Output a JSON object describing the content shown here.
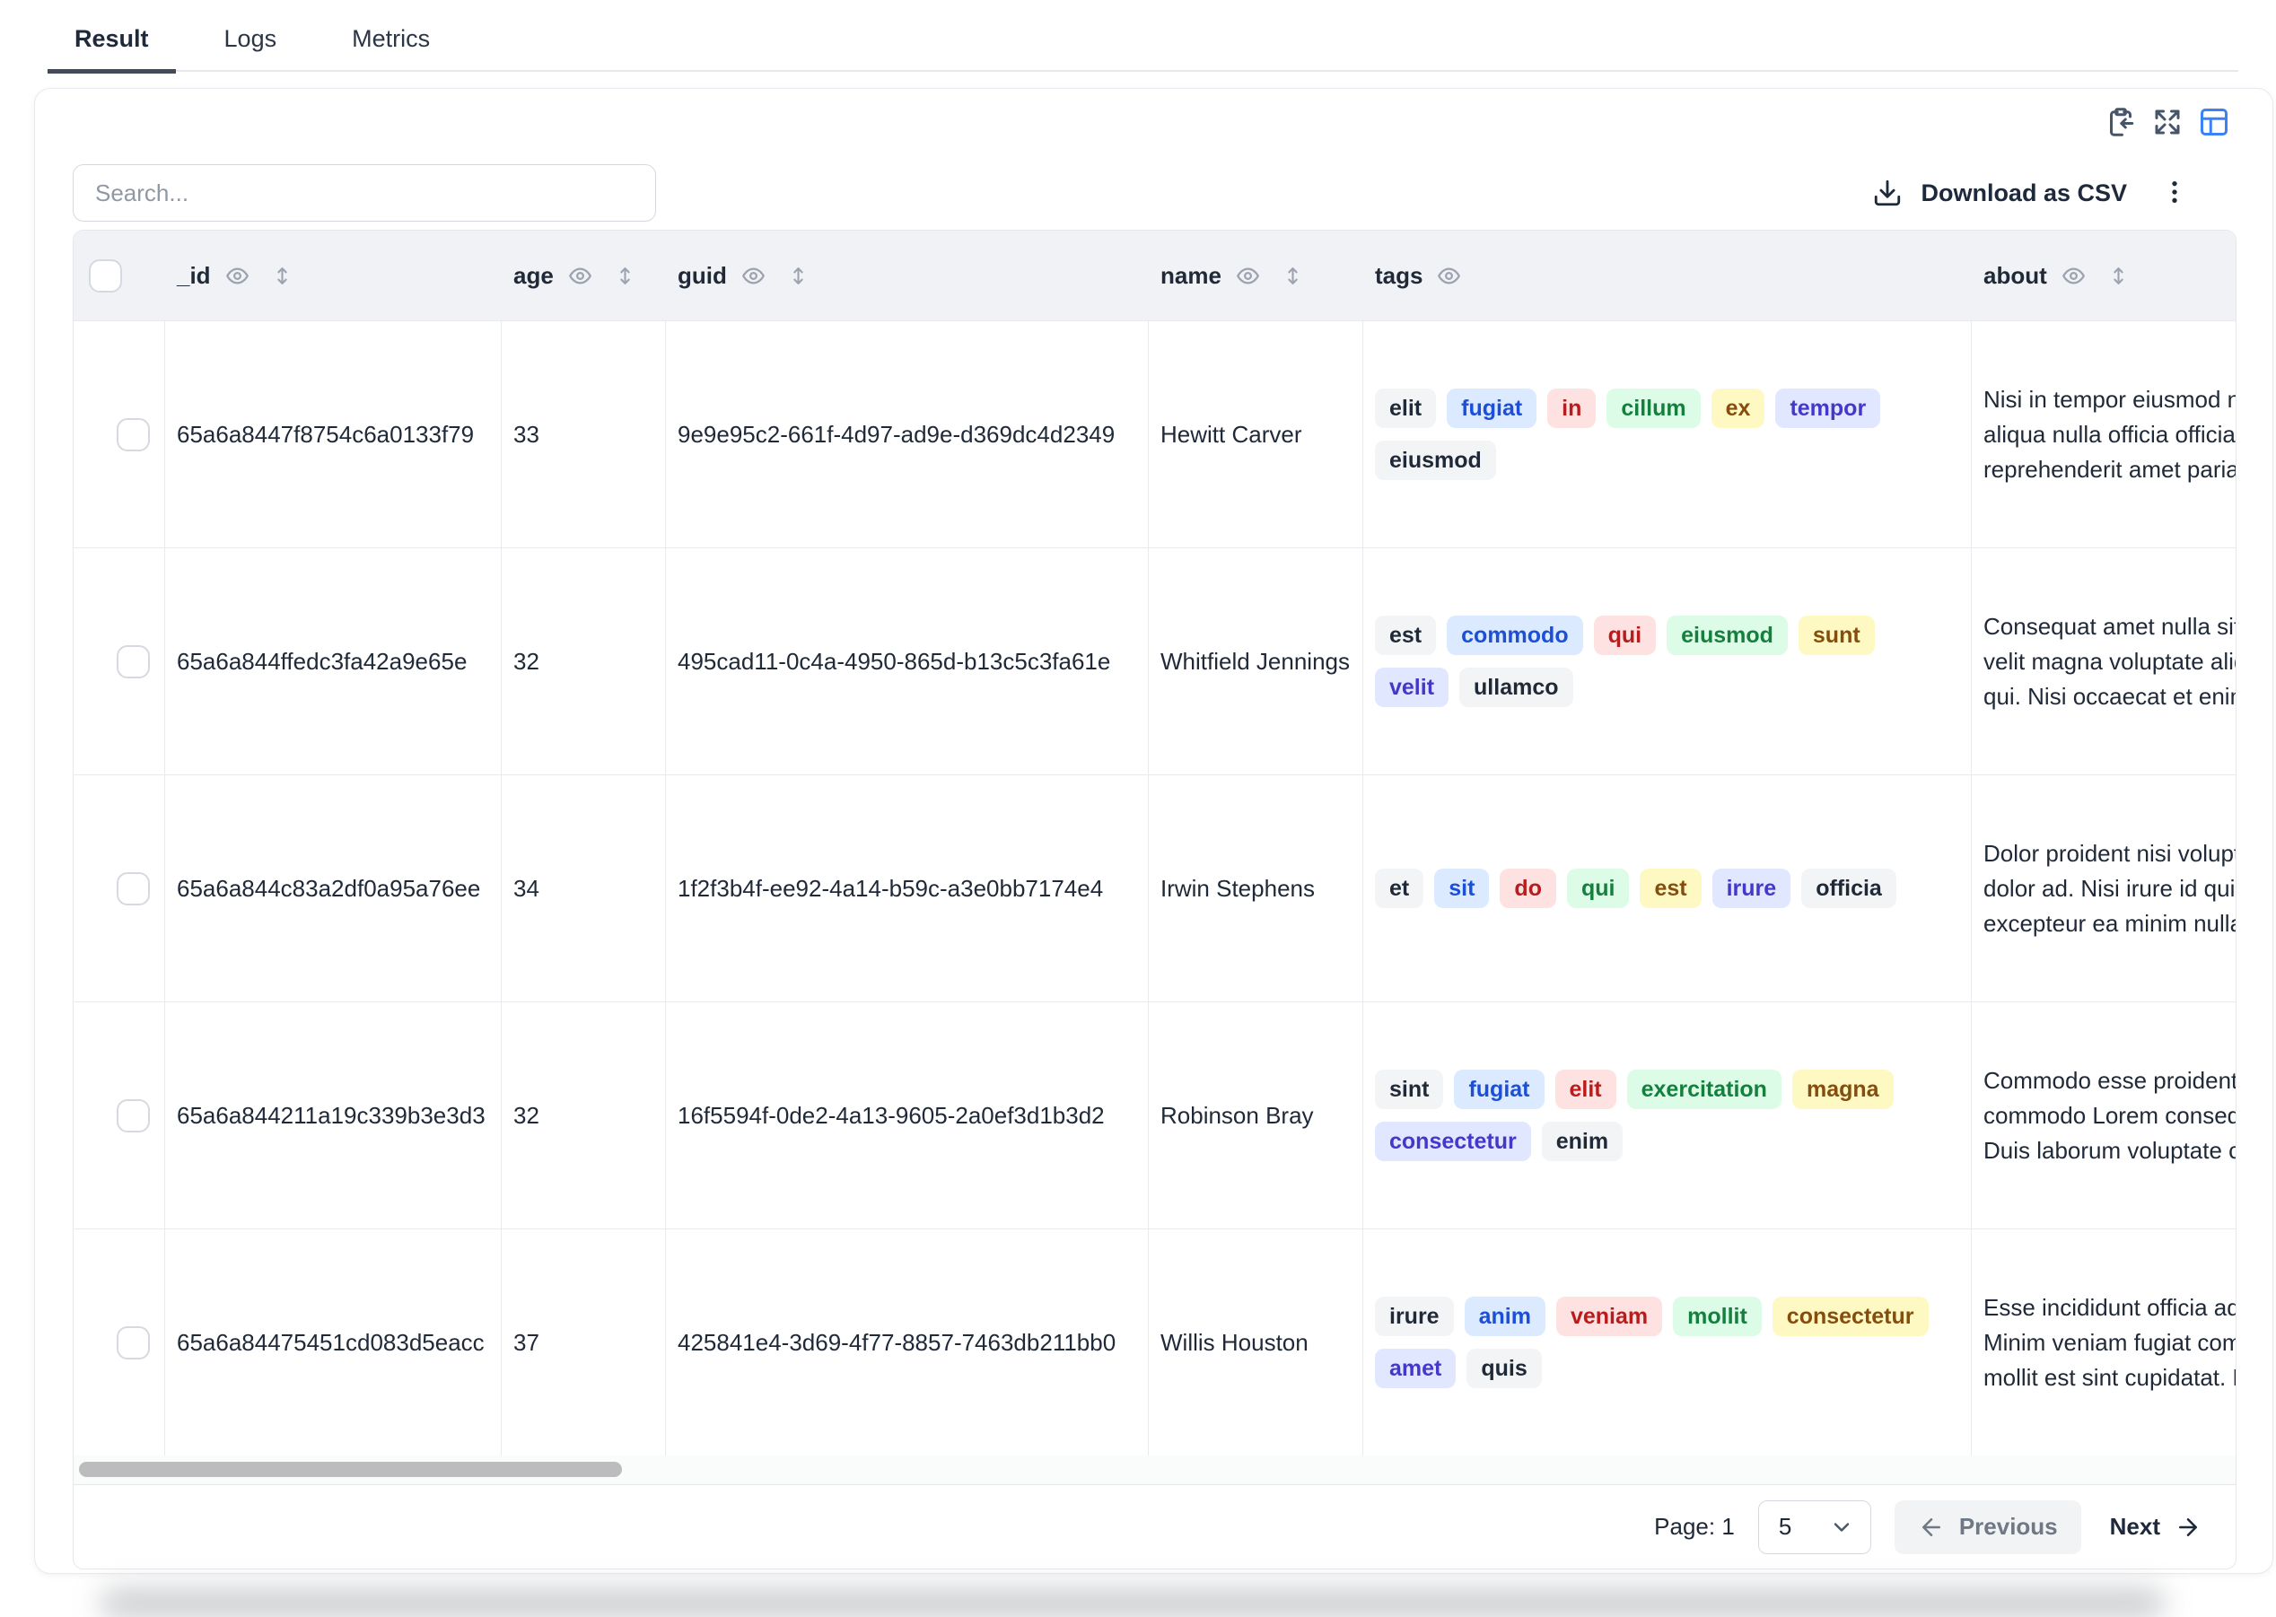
{
  "tabs": [
    {
      "label": "Result",
      "active": true
    },
    {
      "label": "Logs",
      "active": false
    },
    {
      "label": "Metrics",
      "active": false
    }
  ],
  "toolbar": {
    "search_placeholder": "Search...",
    "download_label": "Download as CSV",
    "icons": [
      "clipboard-import-icon",
      "expand-icon",
      "table-layout-icon",
      "download-icon",
      "kebab-menu-icon"
    ]
  },
  "table": {
    "columns": [
      {
        "key": "id",
        "label": "_id",
        "eye": true,
        "sort": true
      },
      {
        "key": "age",
        "label": "age",
        "eye": true,
        "sort": true
      },
      {
        "key": "guid",
        "label": "guid",
        "eye": true,
        "sort": true
      },
      {
        "key": "name",
        "label": "name",
        "eye": true,
        "sort": true
      },
      {
        "key": "tags",
        "label": "tags",
        "eye": true,
        "sort": false
      },
      {
        "key": "about",
        "label": "about",
        "eye": true,
        "sort": true
      }
    ],
    "rows": [
      {
        "id": "65a6a8447f8754c6a0133f79",
        "age": "33",
        "guid": "9e9e95c2-661f-4d97-ad9e-d369dc4d2349",
        "name": "Hewitt Carver",
        "tags": [
          {
            "text": "elit",
            "color": "gray"
          },
          {
            "text": "fugiat",
            "color": "blue"
          },
          {
            "text": "in",
            "color": "red"
          },
          {
            "text": "cillum",
            "color": "green"
          },
          {
            "text": "ex",
            "color": "yellow"
          },
          {
            "text": "tempor",
            "color": "indigo"
          },
          {
            "text": "eiusmod",
            "color": "gray"
          }
        ],
        "about_lines": [
          "Nisi in tempor eiusmod nulla",
          "aliqua nulla officia officia. Ad",
          "reprehenderit amet pariatur"
        ]
      },
      {
        "id": "65a6a844ffedc3fa42a9e65e",
        "age": "32",
        "guid": "495cad11-0c4a-4950-865d-b13c5c3fa61e",
        "name": "Whitfield Jennings",
        "tags": [
          {
            "text": "est",
            "color": "gray"
          },
          {
            "text": "commodo",
            "color": "blue"
          },
          {
            "text": "qui",
            "color": "red"
          },
          {
            "text": "eiusmod",
            "color": "green"
          },
          {
            "text": "sunt",
            "color": "yellow"
          },
          {
            "text": "velit",
            "color": "indigo"
          },
          {
            "text": "ullamco",
            "color": "gray"
          }
        ],
        "about_lines": [
          "Consequat amet nulla sit au",
          "velit magna voluptate aliqua",
          "qui. Nisi occaecat et enim a"
        ]
      },
      {
        "id": "65a6a844c83a2df0a95a76ee",
        "age": "34",
        "guid": "1f2f3b4f-ee92-4a14-b59c-a3e0bb7174e4",
        "name": "Irwin Stephens",
        "tags": [
          {
            "text": "et",
            "color": "gray"
          },
          {
            "text": "sit",
            "color": "blue"
          },
          {
            "text": "do",
            "color": "red"
          },
          {
            "text": "qui",
            "color": "green"
          },
          {
            "text": "est",
            "color": "yellow"
          },
          {
            "text": "irure",
            "color": "indigo"
          },
          {
            "text": "officia",
            "color": "gray"
          }
        ],
        "about_lines": [
          "Dolor proident nisi voluptate",
          "dolor ad. Nisi irure id quis ex",
          "excepteur ea minim nulla ul"
        ]
      },
      {
        "id": "65a6a844211a19c339b3e3d3",
        "age": "32",
        "guid": "16f5594f-0de2-4a13-9605-2a0ef3d1b3d2",
        "name": "Robinson Bray",
        "tags": [
          {
            "text": "sint",
            "color": "gray"
          },
          {
            "text": "fugiat",
            "color": "blue"
          },
          {
            "text": "elit",
            "color": "red"
          },
          {
            "text": "exercitation",
            "color": "green"
          },
          {
            "text": "magna",
            "color": "yellow"
          },
          {
            "text": "consectetur",
            "color": "indigo"
          },
          {
            "text": "enim",
            "color": "gray"
          }
        ],
        "about_lines": [
          "Commodo esse proident ex",
          "commodo Lorem consequa",
          "Duis laborum voluptate con"
        ]
      },
      {
        "id": "65a6a84475451cd083d5eacc",
        "age": "37",
        "guid": "425841e4-3d69-4f77-8857-7463db211bb0",
        "name": "Willis Houston",
        "tags": [
          {
            "text": "irure",
            "color": "gray"
          },
          {
            "text": "anim",
            "color": "blue"
          },
          {
            "text": "veniam",
            "color": "red"
          },
          {
            "text": "mollit",
            "color": "green"
          },
          {
            "text": "consectetur",
            "color": "yellow"
          },
          {
            "text": "amet",
            "color": "indigo"
          },
          {
            "text": "quis",
            "color": "gray"
          }
        ],
        "about_lines": [
          "Esse incididunt officia adipi",
          "Minim veniam fugiat commo",
          "mollit est sint cupidatat. De"
        ]
      }
    ]
  },
  "pagination": {
    "page_label": "Page: 1",
    "page_size": "5",
    "previous_label": "Previous",
    "next_label": "Next"
  },
  "colors": {
    "accent": "#3b82f6",
    "text_primary": "#1f2937",
    "border": "#e8eaee",
    "header_bg": "#f0f2f5",
    "tab_underline": "#414b5a",
    "tag_gray_bg": "#f3f4f6",
    "tag_gray_text": "#1f2937",
    "tag_blue_bg": "#dbeafe",
    "tag_blue_text": "#1d4ed8",
    "tag_red_bg": "#fee2e2",
    "tag_red_text": "#b91c1c",
    "tag_green_bg": "#dcfce7",
    "tag_green_text": "#15803d",
    "tag_yellow_bg": "#fef9c3",
    "tag_yellow_text": "#854d0e",
    "tag_indigo_bg": "#e0e7ff",
    "tag_indigo_text": "#4338ca"
  }
}
